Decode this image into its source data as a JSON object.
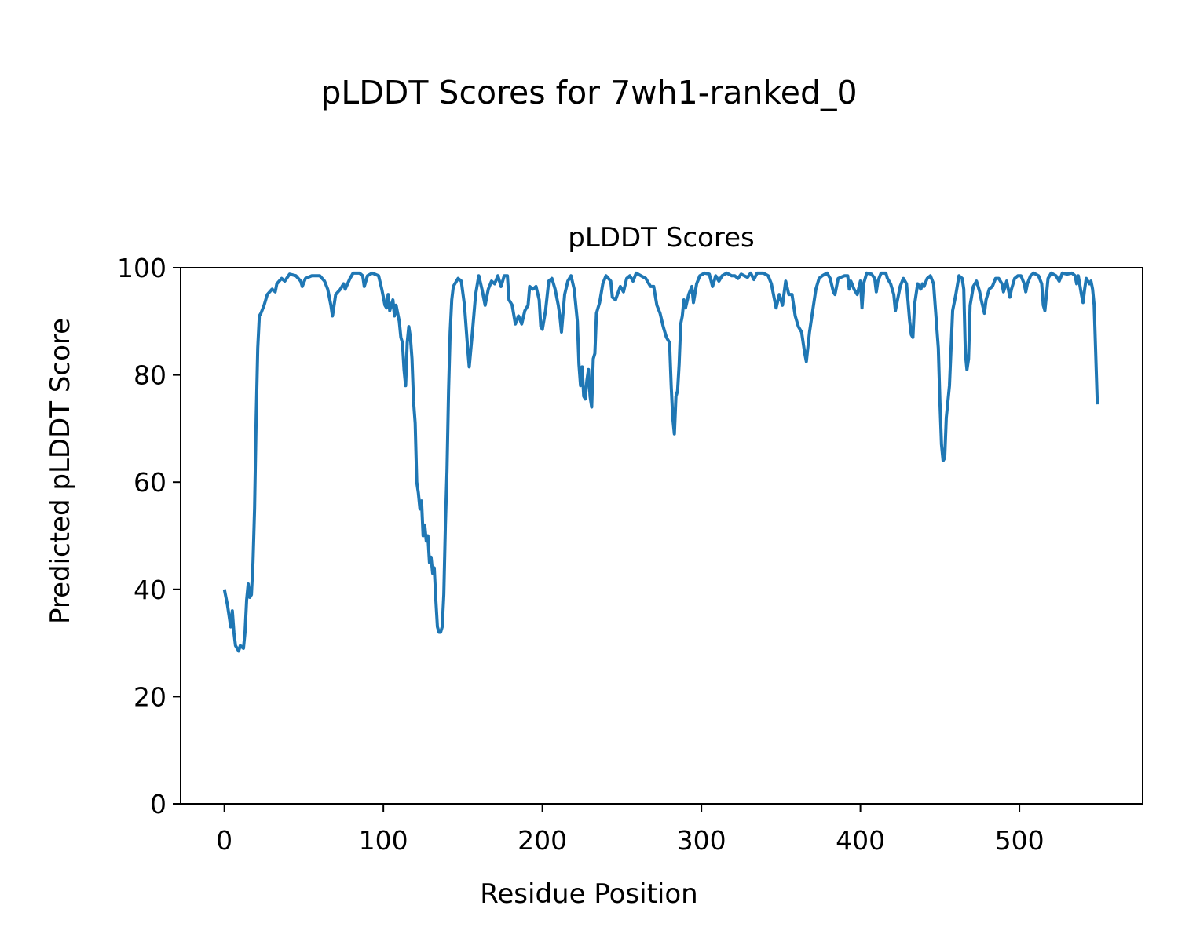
{
  "chart_data": {
    "type": "line",
    "title": "pLDDT Scores for 7wh1-ranked_0",
    "subtitle": "pLDDT Scores",
    "x_label": "Residue Position",
    "y_label": "Predicted pLDDT Score",
    "color": "#1f77b4",
    "grid": false,
    "xlim": [
      -27.5,
      577.5
    ],
    "ylim": [
      0,
      100
    ],
    "xticks": [
      0,
      100,
      200,
      300,
      400,
      500
    ],
    "yticks": [
      0,
      20,
      40,
      60,
      80,
      100
    ],
    "x": [
      0,
      2,
      3,
      4,
      5,
      6,
      7,
      9,
      10,
      12,
      13,
      14,
      15,
      16,
      17,
      18,
      19,
      20,
      21,
      22,
      23,
      25,
      27,
      30,
      32,
      33,
      36,
      38,
      41,
      45,
      48,
      49,
      51,
      55,
      60,
      63,
      65,
      67,
      68,
      70,
      73,
      75,
      76,
      79,
      81,
      85,
      87,
      88,
      90,
      93,
      97,
      99,
      101,
      102,
      103,
      104,
      106,
      107,
      108,
      110,
      111,
      112,
      113,
      114,
      115,
      116,
      117,
      118,
      119,
      120,
      121,
      122,
      123,
      124,
      125,
      126,
      127,
      128,
      129,
      130,
      131,
      132,
      133,
      134,
      135,
      136,
      137,
      138,
      139,
      140,
      141,
      142,
      143,
      144,
      147,
      149,
      151,
      153,
      154,
      156,
      158,
      160,
      162,
      164,
      166,
      168,
      170,
      172,
      174,
      176,
      178,
      179,
      181,
      183,
      185,
      187,
      189,
      191,
      192,
      194,
      196,
      198,
      199,
      200,
      202,
      204,
      206,
      208,
      210,
      211,
      212,
      214,
      216,
      218,
      220,
      222,
      223,
      224,
      225,
      226,
      227,
      228,
      229,
      230,
      231,
      232,
      233,
      234,
      236,
      238,
      240,
      243,
      244,
      246,
      249,
      251,
      253,
      255,
      257,
      259,
      262,
      265,
      267,
      268,
      270,
      272,
      274,
      276,
      278,
      280,
      281,
      282,
      283,
      284,
      285,
      286,
      287,
      288,
      289,
      290,
      292,
      294,
      295,
      297,
      299,
      302,
      305,
      307,
      309,
      311,
      313,
      316,
      319,
      321,
      323,
      325,
      327,
      329,
      331,
      333,
      335,
      339,
      342,
      344,
      346,
      347,
      349,
      351,
      353,
      355,
      357,
      359,
      361,
      363,
      365,
      366,
      368,
      370,
      372,
      374,
      376,
      379,
      381,
      383,
      384,
      386,
      390,
      392,
      393,
      394,
      396,
      398,
      400,
      401,
      402,
      404,
      407,
      409,
      410,
      411,
      413,
      416,
      417,
      419,
      421,
      422,
      423,
      425,
      427,
      429,
      431,
      432,
      433,
      434,
      436,
      438,
      439,
      440,
      442,
      444,
      446,
      447,
      449,
      450,
      451,
      452,
      453,
      454,
      456,
      458,
      460,
      462,
      464,
      465,
      466,
      467,
      468,
      469,
      471,
      473,
      475,
      476,
      478,
      479,
      481,
      483,
      485,
      487,
      489,
      490,
      492,
      494,
      495,
      497,
      499,
      501,
      503,
      504,
      505,
      507,
      509,
      512,
      514,
      515,
      516,
      518,
      520,
      523,
      525,
      527,
      530,
      533,
      535,
      536,
      537,
      539,
      540,
      541,
      542,
      544,
      545,
      546,
      547,
      549
    ],
    "values": [
      40,
      37,
      35,
      33,
      36,
      32,
      29.5,
      28.5,
      29.5,
      29,
      32,
      38,
      41,
      38.5,
      39,
      45,
      55,
      72,
      85,
      91,
      91.5,
      93,
      95,
      96,
      95.5,
      97,
      98,
      97.5,
      98.8,
      98.5,
      97.5,
      96.5,
      98,
      98.5,
      98.5,
      97.5,
      96,
      93,
      91,
      95,
      96,
      97,
      96,
      98,
      99,
      99,
      98.5,
      96.5,
      98.5,
      99,
      98.5,
      96,
      93,
      92.5,
      95,
      92,
      94,
      91,
      93,
      90,
      87,
      86,
      81,
      78,
      86,
      89,
      87,
      83,
      75,
      71,
      60,
      58,
      55,
      56.5,
      50,
      52,
      49,
      50,
      45,
      46,
      43,
      44,
      38,
      33,
      32,
      32,
      33,
      39,
      52,
      62,
      77,
      88,
      94,
      96.5,
      98,
      97.5,
      93,
      85,
      81.5,
      88,
      95,
      98.5,
      96,
      93,
      96,
      97.5,
      97,
      98.5,
      96.5,
      98.5,
      98.5,
      94,
      93,
      89.5,
      91,
      89.5,
      92,
      93,
      96.5,
      96,
      96.5,
      94,
      89,
      88.5,
      92,
      97.5,
      98,
      96,
      93,
      91,
      88,
      95,
      97.5,
      98.5,
      96,
      90,
      82,
      78,
      81.5,
      76,
      75.5,
      79,
      81,
      76,
      74,
      83,
      84,
      91.5,
      93.5,
      97,
      98.5,
      97.5,
      94.5,
      94,
      96.5,
      95.5,
      98,
      98.5,
      97.5,
      99,
      98.5,
      98,
      97,
      96.5,
      96.5,
      93,
      91.5,
      89,
      87,
      86,
      78,
      72,
      69,
      76,
      77,
      82,
      89.5,
      91,
      94,
      92.5,
      95,
      96.5,
      93.5,
      97,
      98.5,
      99,
      98.8,
      96.5,
      98.5,
      97.5,
      98.5,
      99,
      98.5,
      98.5,
      98,
      98.8,
      98.5,
      98.2,
      99,
      97.8,
      99,
      99,
      98.5,
      97,
      94,
      92.5,
      95,
      93,
      97.5,
      95,
      95,
      91,
      89,
      88,
      84,
      82.5,
      88,
      92,
      96,
      98,
      98.5,
      99,
      98,
      95.5,
      95,
      98,
      98.5,
      98.5,
      96,
      97.5,
      96,
      95,
      97.5,
      92.5,
      97,
      99,
      98.8,
      98,
      95.5,
      97.5,
      99,
      99,
      98,
      97,
      95,
      92,
      93.5,
      96.5,
      98,
      97,
      90,
      87.5,
      87,
      93,
      97,
      96,
      97,
      96.5,
      98,
      98.5,
      97,
      93,
      85,
      75,
      67,
      64,
      64.5,
      72,
      78,
      92,
      95,
      98.5,
      98,
      96,
      84,
      81,
      83,
      93,
      96.5,
      97.5,
      95.5,
      94,
      91.5,
      94,
      96,
      96.5,
      98,
      98,
      97,
      95.5,
      97.5,
      94.5,
      96,
      98,
      98.5,
      98.5,
      97,
      95.5,
      97,
      98.5,
      99,
      98.5,
      97,
      93,
      92,
      98,
      99,
      98.5,
      97.5,
      99,
      98.8,
      99,
      98.5,
      97,
      98.5,
      95,
      93.5,
      96,
      98,
      97,
      97.5,
      96,
      93,
      74.5
    ]
  }
}
